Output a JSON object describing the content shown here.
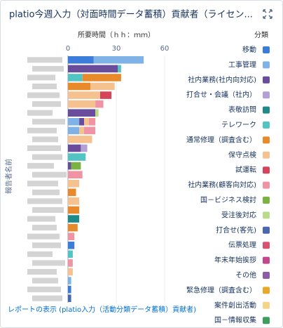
{
  "chart_data": {
    "type": "stacked_barh",
    "title": "platio今週入力（対面時間データ蓄積）貢献者（ライセン...",
    "x_label": "所要時間（ｈｈ：ｍｍ）",
    "y_label": "報告者名前",
    "legend_title": "分類",
    "footer_link": "レポートの表示 (platio入力（活動分類データ蓄積）貢献者)",
    "xlim": [
      0,
      60
    ],
    "xticks": [
      0,
      30,
      60
    ],
    "categories": [
      null,
      null,
      null,
      null,
      null,
      null,
      null,
      null,
      null,
      null,
      null,
      null,
      null,
      null,
      null,
      null,
      null,
      null,
      null,
      null,
      null,
      null,
      null,
      null,
      null,
      null,
      null,
      null
    ],
    "series": [
      {
        "name": "移動",
        "color": "#3b7dd8",
        "values": [
          16,
          0,
          0,
          0,
          0,
          0,
          0,
          0,
          0,
          0,
          0,
          0,
          0,
          0,
          0,
          0,
          0,
          0,
          0,
          0,
          0,
          4,
          0,
          0,
          0,
          0,
          2,
          0
        ]
      },
      {
        "name": "工事管理",
        "color": "#7fb3e8",
        "values": [
          31,
          0,
          0,
          0,
          0,
          0,
          0,
          7,
          7,
          0,
          0,
          0,
          0,
          0,
          0,
          0,
          0,
          0,
          0,
          0,
          0,
          0,
          0,
          0,
          0,
          2,
          0,
          0
        ]
      },
      {
        "name": "社内業務(社内向対応)",
        "color": "#6a4c9c",
        "values": [
          0,
          31,
          0,
          0,
          0,
          0,
          17,
          3,
          0,
          0,
          8,
          0,
          2,
          0,
          0,
          0,
          0,
          0,
          0,
          0,
          0,
          0,
          0,
          0,
          0,
          0,
          0,
          0
        ]
      },
      {
        "name": "打合せ・会議（社内）",
        "color": "#b5a0d6",
        "values": [
          0,
          0,
          0,
          0,
          0,
          0,
          0,
          0,
          0,
          0,
          4,
          0,
          0,
          0,
          0,
          0,
          0,
          0,
          0,
          0,
          0,
          0,
          0,
          0,
          0,
          0,
          0,
          0
        ]
      },
      {
        "name": "表敬訪問",
        "color": "#1f8a8a",
        "values": [
          0,
          0,
          0,
          0,
          0,
          0,
          0,
          0,
          0,
          0,
          0,
          0,
          0,
          0,
          0,
          0,
          0,
          0,
          7,
          0,
          0,
          0,
          0,
          0,
          0,
          0,
          0,
          0
        ]
      },
      {
        "name": "テレワーク",
        "color": "#52c4c4",
        "values": [
          0,
          2,
          9,
          0,
          0,
          0,
          0,
          0,
          0,
          0,
          0,
          11,
          0,
          0,
          0,
          0,
          0,
          0,
          0,
          0,
          0,
          0,
          3,
          0,
          0,
          0,
          0,
          0
        ]
      },
      {
        "name": "通常修理（調査含む）",
        "color": "#e88a2a",
        "values": [
          0,
          0,
          24,
          14,
          0,
          0,
          0,
          0,
          0,
          0,
          0,
          0,
          0,
          0,
          0,
          5,
          0,
          7,
          0,
          6,
          0,
          0,
          0,
          0,
          0,
          0,
          0,
          0
        ]
      },
      {
        "name": "保守点検",
        "color": "#f5c18f",
        "values": [
          0,
          0,
          0,
          15,
          20,
          17,
          0,
          3,
          3,
          15,
          0,
          0,
          0,
          0,
          7,
          0,
          7,
          0,
          0,
          0,
          0,
          0,
          0,
          0,
          3,
          0,
          0,
          0
        ]
      },
      {
        "name": "試運転",
        "color": "#d6445c",
        "values": [
          0,
          0,
          0,
          0,
          7,
          0,
          0,
          0,
          0,
          0,
          0,
          0,
          0,
          0,
          0,
          0,
          0,
          0,
          0,
          0,
          0,
          0,
          0,
          0,
          0,
          0,
          0,
          0
        ]
      },
      {
        "name": "社内業務(顧客向対応)",
        "color": "#f093a3",
        "values": [
          0,
          0,
          0,
          0,
          0,
          5,
          0,
          4,
          7,
          0,
          0,
          0,
          0,
          9,
          0,
          0,
          0,
          0,
          0,
          0,
          4,
          0,
          0,
          3,
          0,
          0,
          0,
          0
        ]
      },
      {
        "name": "国－ビジネス検討",
        "color": "#7bb342",
        "values": [
          0,
          0,
          0,
          0,
          0,
          0,
          0,
          0,
          0,
          0,
          0,
          0,
          6,
          0,
          0,
          0,
          0,
          0,
          0,
          0,
          0,
          0,
          0,
          0,
          0,
          0,
          0,
          0
        ]
      },
      {
        "name": "受注後対応",
        "color": "#b8da8b",
        "values": [
          0,
          0,
          0,
          0,
          0,
          0,
          2,
          0,
          0,
          0,
          0,
          0,
          0,
          0,
          0,
          0,
          0,
          0,
          0,
          0,
          0,
          0,
          0,
          0,
          0,
          0,
          0,
          0
        ]
      },
      {
        "name": "打合せ(客先)",
        "color": "#4a67b0",
        "values": [
          0,
          0,
          0,
          0,
          0,
          0,
          0,
          0,
          0,
          0,
          0,
          0,
          0,
          0,
          0,
          0,
          0,
          0,
          0,
          0,
          0,
          0,
          0,
          0,
          0,
          0,
          0,
          2
        ]
      },
      {
        "name": "伝票処理",
        "color": "#d9536f",
        "values": [
          0,
          0,
          0,
          0,
          0,
          0,
          0,
          0,
          0,
          0,
          0,
          0,
          0,
          0,
          0,
          0,
          0,
          0,
          0,
          0,
          0,
          0,
          0,
          0,
          0,
          0,
          0,
          0
        ]
      },
      {
        "name": "年末年始挨拶",
        "color": "#c2478f",
        "values": [
          0,
          0,
          0,
          0,
          0,
          0,
          0,
          0,
          0,
          0,
          0,
          0,
          0,
          0,
          0,
          0,
          0,
          0,
          0,
          0,
          0,
          0,
          0,
          0,
          0,
          0,
          0,
          0
        ]
      },
      {
        "name": "その他",
        "color": "#8e5ba8",
        "values": [
          0,
          0,
          0,
          0,
          0,
          0,
          0,
          0,
          0,
          0,
          0,
          0,
          0,
          0,
          0,
          0,
          0,
          0,
          0,
          0,
          0,
          0,
          0,
          0,
          0,
          0,
          0,
          0
        ]
      },
      {
        "name": "緊急修理（調査含む）",
        "color": "#e8a92a",
        "values": [
          0,
          0,
          0,
          0,
          0,
          0,
          0,
          0,
          0,
          0,
          0,
          0,
          0,
          0,
          0,
          0,
          0,
          0,
          0,
          0,
          0,
          0,
          0,
          0,
          0,
          0,
          0,
          0
        ]
      },
      {
        "name": "案件創出活動",
        "color": "#f3d58a",
        "values": [
          0,
          0,
          0,
          0,
          0,
          0,
          0,
          0,
          0,
          0,
          0,
          0,
          0,
          0,
          0,
          0,
          0,
          0,
          0,
          0,
          0,
          0,
          0,
          0,
          0,
          0,
          0,
          0
        ]
      },
      {
        "name": "国－情報収集",
        "color": "#3e9e5e",
        "values": [
          0,
          0,
          0,
          0,
          0,
          0,
          0,
          0,
          0,
          0,
          0,
          0,
          0,
          0,
          0,
          0,
          0,
          0,
          0,
          0,
          0,
          0,
          0,
          0,
          0,
          0,
          0,
          0
        ]
      }
    ]
  }
}
